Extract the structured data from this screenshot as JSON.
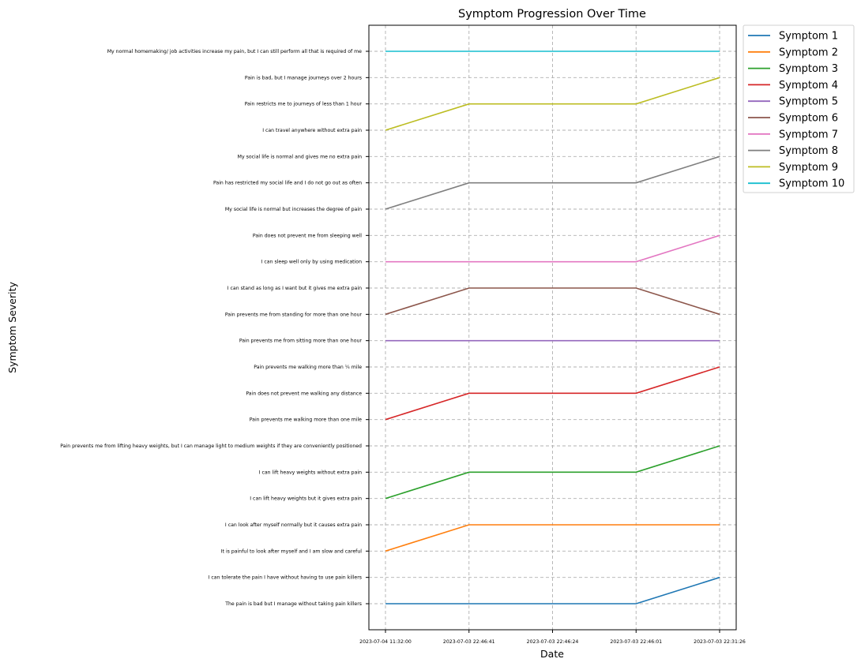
{
  "chart_data": {
    "type": "line",
    "title": "Symptom Progression Over Time",
    "xlabel": "Date",
    "ylabel": "Symptom Severity",
    "grid": true,
    "legend_placement": "outside-top-right",
    "x": [
      "2023-07-04 11:32:00",
      "2023-07-03 22:46:41",
      "2023-07-03 22:46:24",
      "2023-07-03 22:46:01",
      "2023-07-03 22:31:26"
    ],
    "y_categories": [
      "The pain is bad but I manage without taking pain killers",
      "I can tolerate the pain I have without having to use pain killers",
      "It is painful to look after myself and I am slow and careful",
      "I can look after myself normally but it causes extra pain",
      "I can lift heavy weights but it gives extra pain",
      "I can lift heavy weights without extra pain",
      "Pain prevents me from lifting heavy weights, but I can manage light to medium weights if they are conveniently positioned",
      "Pain prevents me walking more than one mile",
      "Pain does not prevent me walking any distance",
      "Pain prevents me walking more than ¼ mile",
      "Pain prevents me from sitting more than one hour",
      "Pain prevents me from standing for more than one hour",
      "I can stand as long as I want but it gives me extra pain",
      "I can sleep well only by using medication",
      "Pain does not prevent me from sleeping well",
      "My social life is normal but increases the degree of pain",
      "Pain has restricted my social life and I do not go out as often",
      "My social life is normal and gives me no extra pain",
      "I can travel anywhere without extra pain",
      "Pain restricts me to journeys of less than 1 hour",
      "Pain is bad, but I manage journeys over 2 hours",
      "My normal homemaking/ job activities increase my pain, but I can still perform all that is required of me"
    ],
    "series": [
      {
        "name": "Symptom 1",
        "color": "#1f77b4",
        "values": [
          "The pain is bad but I manage without taking pain killers",
          "The pain is bad but I manage without taking pain killers",
          "The pain is bad but I manage without taking pain killers",
          "The pain is bad but I manage without taking pain killers",
          "I can tolerate the pain I have without having to use pain killers"
        ]
      },
      {
        "name": "Symptom 2",
        "color": "#ff7f0e",
        "values": [
          "It is painful to look after myself and I am slow and careful",
          "I can look after myself normally but it causes extra pain",
          "I can look after myself normally but it causes extra pain",
          "I can look after myself normally but it causes extra pain",
          "I can look after myself normally but it causes extra pain"
        ]
      },
      {
        "name": "Symptom 3",
        "color": "#2ca02c",
        "values": [
          "I can lift heavy weights but it gives extra pain",
          "I can lift heavy weights without extra pain",
          "I can lift heavy weights without extra pain",
          "I can lift heavy weights without extra pain",
          "Pain prevents me from lifting heavy weights, but I can manage light to medium weights if they are conveniently positioned"
        ]
      },
      {
        "name": "Symptom 4",
        "color": "#d62728",
        "values": [
          "Pain prevents me walking more than one mile",
          "Pain does not prevent me walking any distance",
          "Pain does not prevent me walking any distance",
          "Pain does not prevent me walking any distance",
          "Pain prevents me walking more than ¼ mile"
        ]
      },
      {
        "name": "Symptom 5",
        "color": "#9467bd",
        "values": [
          "Pain prevents me from sitting more than one hour",
          "Pain prevents me from sitting more than one hour",
          "Pain prevents me from sitting more than one hour",
          "Pain prevents me from sitting more than one hour",
          "Pain prevents me from sitting more than one hour"
        ]
      },
      {
        "name": "Symptom 6",
        "color": "#8c564b",
        "values": [
          "Pain prevents me from standing for more than one hour",
          "I can stand as long as I want but it gives me extra pain",
          "I can stand as long as I want but it gives me extra pain",
          "I can stand as long as I want but it gives me extra pain",
          "Pain prevents me from standing for more than one hour"
        ]
      },
      {
        "name": "Symptom 7",
        "color": "#e377c2",
        "values": [
          "I can sleep well only by using medication",
          "I can sleep well only by using medication",
          "I can sleep well only by using medication",
          "I can sleep well only by using medication",
          "Pain does not prevent me from sleeping well"
        ]
      },
      {
        "name": "Symptom 8",
        "color": "#7f7f7f",
        "values": [
          "My social life is normal but increases the degree of pain",
          "Pain has restricted my social life and I do not go out as often",
          "Pain has restricted my social life and I do not go out as often",
          "Pain has restricted my social life and I do not go out as often",
          "My social life is normal and gives me no extra pain"
        ]
      },
      {
        "name": "Symptom 9",
        "color": "#bcbd22",
        "values": [
          "I can travel anywhere without extra pain",
          "Pain restricts me to journeys of less than 1 hour",
          "Pain restricts me to journeys of less than 1 hour",
          "Pain restricts me to journeys of less than 1 hour",
          "Pain is bad, but I manage journeys over 2 hours"
        ]
      },
      {
        "name": "Symptom 10",
        "color": "#17becf",
        "values": [
          "My normal homemaking/ job activities increase my pain, but I can still perform all that is required of me",
          "My normal homemaking/ job activities increase my pain, but I can still perform all that is required of me",
          "My normal homemaking/ job activities increase my pain, but I can still perform all that is required of me",
          "My normal homemaking/ job activities increase my pain, but I can still perform all that is required of me",
          "My normal homemaking/ job activities increase my pain, but I can still perform all that is required of me"
        ]
      }
    ]
  }
}
